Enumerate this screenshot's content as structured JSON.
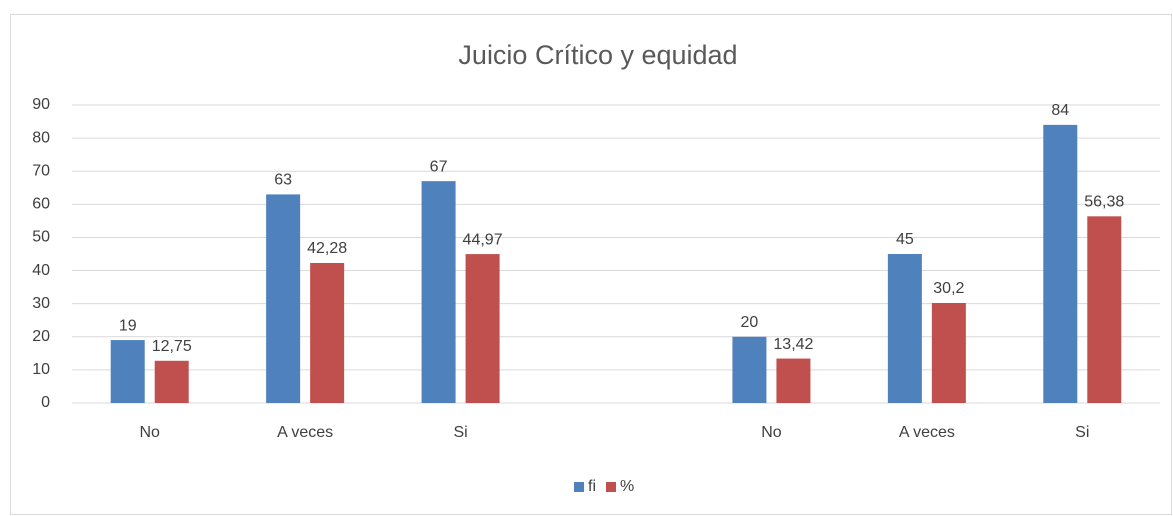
{
  "chart_data": {
    "type": "bar",
    "title": "Juicio Crítico y equidad",
    "categories": [
      "No",
      "A veces",
      "Si",
      null,
      "No",
      "A veces",
      "Si"
    ],
    "series": [
      {
        "name": "fi",
        "color": "#4f81bd",
        "values": [
          19,
          63,
          67,
          null,
          20,
          45,
          84
        ]
      },
      {
        "name": "%",
        "color": "#c0504d",
        "values": [
          12.75,
          42.28,
          44.97,
          null,
          13.42,
          30.2,
          56.38
        ],
        "value_labels": [
          "12,75",
          "42,28",
          "44,97",
          null,
          "13,42",
          "30,2",
          "56,38"
        ]
      }
    ],
    "ylim": [
      0,
      90
    ],
    "yticks": [
      0,
      10,
      20,
      30,
      40,
      50,
      60,
      70,
      80,
      90
    ],
    "grid": true,
    "legend": "bottom"
  }
}
